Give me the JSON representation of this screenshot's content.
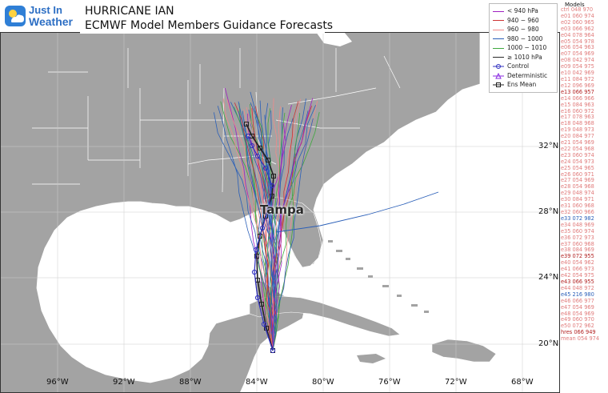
{
  "header": {
    "logo_line1": "Just In",
    "logo_line2": "Weather",
    "title_line1": "HURRICANE IAN",
    "title_line2": "ECMWF Model Members Guidance Forecasts"
  },
  "map": {
    "city_label": "Tampa",
    "land_color": "#a3a3a3",
    "water_color": "#ffffff",
    "border_color": "#ffffff",
    "lat_labels": [
      "32°N",
      "28°N",
      "24°N",
      "20°N"
    ],
    "lon_labels": [
      "96°W",
      "92°W",
      "88°W",
      "84°W",
      "80°W",
      "76°W",
      "72°W",
      "68°W"
    ]
  },
  "legend": {
    "entries": [
      {
        "label": "< 940 hPa",
        "color": "#a020c0"
      },
      {
        "label": "940 − 960",
        "color": "#cc3333"
      },
      {
        "label": "960 − 980",
        "color": "#f08a8a"
      },
      {
        "label": "980 − 1000",
        "color": "#2a5fb8"
      },
      {
        "label": "1000 − 1010",
        "color": "#3fa83f"
      },
      {
        "label": "≥ 1010 hPa",
        "color": "#2a2a2a"
      },
      {
        "label": "Control",
        "color": "#3030c0"
      },
      {
        "label": "Deterministic",
        "color": "#8a2be2"
      },
      {
        "label": "Ens Mean",
        "color": "#222222"
      }
    ]
  },
  "models": {
    "title": "Models",
    "entries": [
      {
        "text": "ctrl 048 970",
        "color": "#e07a7a"
      },
      {
        "text": "e01 060 974",
        "color": "#e07a7a"
      },
      {
        "text": "e02 060 965",
        "color": "#e07a7a"
      },
      {
        "text": "e03 066 962",
        "color": "#e07a7a"
      },
      {
        "text": "e04 078 964",
        "color": "#e07a7a"
      },
      {
        "text": "e05 054 978",
        "color": "#e07a7a"
      },
      {
        "text": "e06 054 963",
        "color": "#e07a7a"
      },
      {
        "text": "e07 054 969",
        "color": "#e07a7a"
      },
      {
        "text": "e08 042 974",
        "color": "#e07a7a"
      },
      {
        "text": "e09 054 975",
        "color": "#e07a7a"
      },
      {
        "text": "e10 042 969",
        "color": "#e07a7a"
      },
      {
        "text": "e11 084 972",
        "color": "#e07a7a"
      },
      {
        "text": "e12 096 969",
        "color": "#e07a7a"
      },
      {
        "text": "e13 066 957",
        "color": "#b22222"
      },
      {
        "text": "e14 066 966",
        "color": "#e07a7a"
      },
      {
        "text": "e15 084 963",
        "color": "#e07a7a"
      },
      {
        "text": "e16 060 972",
        "color": "#e07a7a"
      },
      {
        "text": "e17 078 963",
        "color": "#e07a7a"
      },
      {
        "text": "e18 048 968",
        "color": "#e07a7a"
      },
      {
        "text": "e19 048 973",
        "color": "#e07a7a"
      },
      {
        "text": "e20 084 977",
        "color": "#e07a7a"
      },
      {
        "text": "e21 054 969",
        "color": "#e07a7a"
      },
      {
        "text": "e22 054 968",
        "color": "#e07a7a"
      },
      {
        "text": "e23 060 974",
        "color": "#e07a7a"
      },
      {
        "text": "e24 054 973",
        "color": "#e07a7a"
      },
      {
        "text": "e25 054 965",
        "color": "#e07a7a"
      },
      {
        "text": "e26 060 971",
        "color": "#e07a7a"
      },
      {
        "text": "e27 054 969",
        "color": "#e07a7a"
      },
      {
        "text": "e28 054 968",
        "color": "#e07a7a"
      },
      {
        "text": "e29 048 974",
        "color": "#e07a7a"
      },
      {
        "text": "e30 084 971",
        "color": "#e07a7a"
      },
      {
        "text": "e31 060 968",
        "color": "#e07a7a"
      },
      {
        "text": "e32 060 966",
        "color": "#e07a7a"
      },
      {
        "text": "e33 072 982",
        "color": "#2a5fb8"
      },
      {
        "text": "e34 048 969",
        "color": "#e07a7a"
      },
      {
        "text": "e35 060 974",
        "color": "#e07a7a"
      },
      {
        "text": "e36 072 973",
        "color": "#e07a7a"
      },
      {
        "text": "e37 060 968",
        "color": "#e07a7a"
      },
      {
        "text": "e38 084 969",
        "color": "#e07a7a"
      },
      {
        "text": "e39 072 955",
        "color": "#b22222"
      },
      {
        "text": "e40 054 962",
        "color": "#e07a7a"
      },
      {
        "text": "e41 066 973",
        "color": "#e07a7a"
      },
      {
        "text": "e42 054 975",
        "color": "#e07a7a"
      },
      {
        "text": "e43 066 955",
        "color": "#b22222"
      },
      {
        "text": "e44 048 972",
        "color": "#e07a7a"
      },
      {
        "text": "e45 216 980",
        "color": "#2a5fb8"
      },
      {
        "text": "e46 066 977",
        "color": "#e07a7a"
      },
      {
        "text": "e47 054 969",
        "color": "#e07a7a"
      },
      {
        "text": "e48 054 969",
        "color": "#e07a7a"
      },
      {
        "text": "e49 060 970",
        "color": "#e07a7a"
      },
      {
        "text": "e50 072 962",
        "color": "#e07a7a"
      },
      {
        "text": "hres 066 949",
        "color": "#b22222"
      },
      {
        "text": "mean 054 974",
        "color": "#e07a7a"
      }
    ]
  }
}
